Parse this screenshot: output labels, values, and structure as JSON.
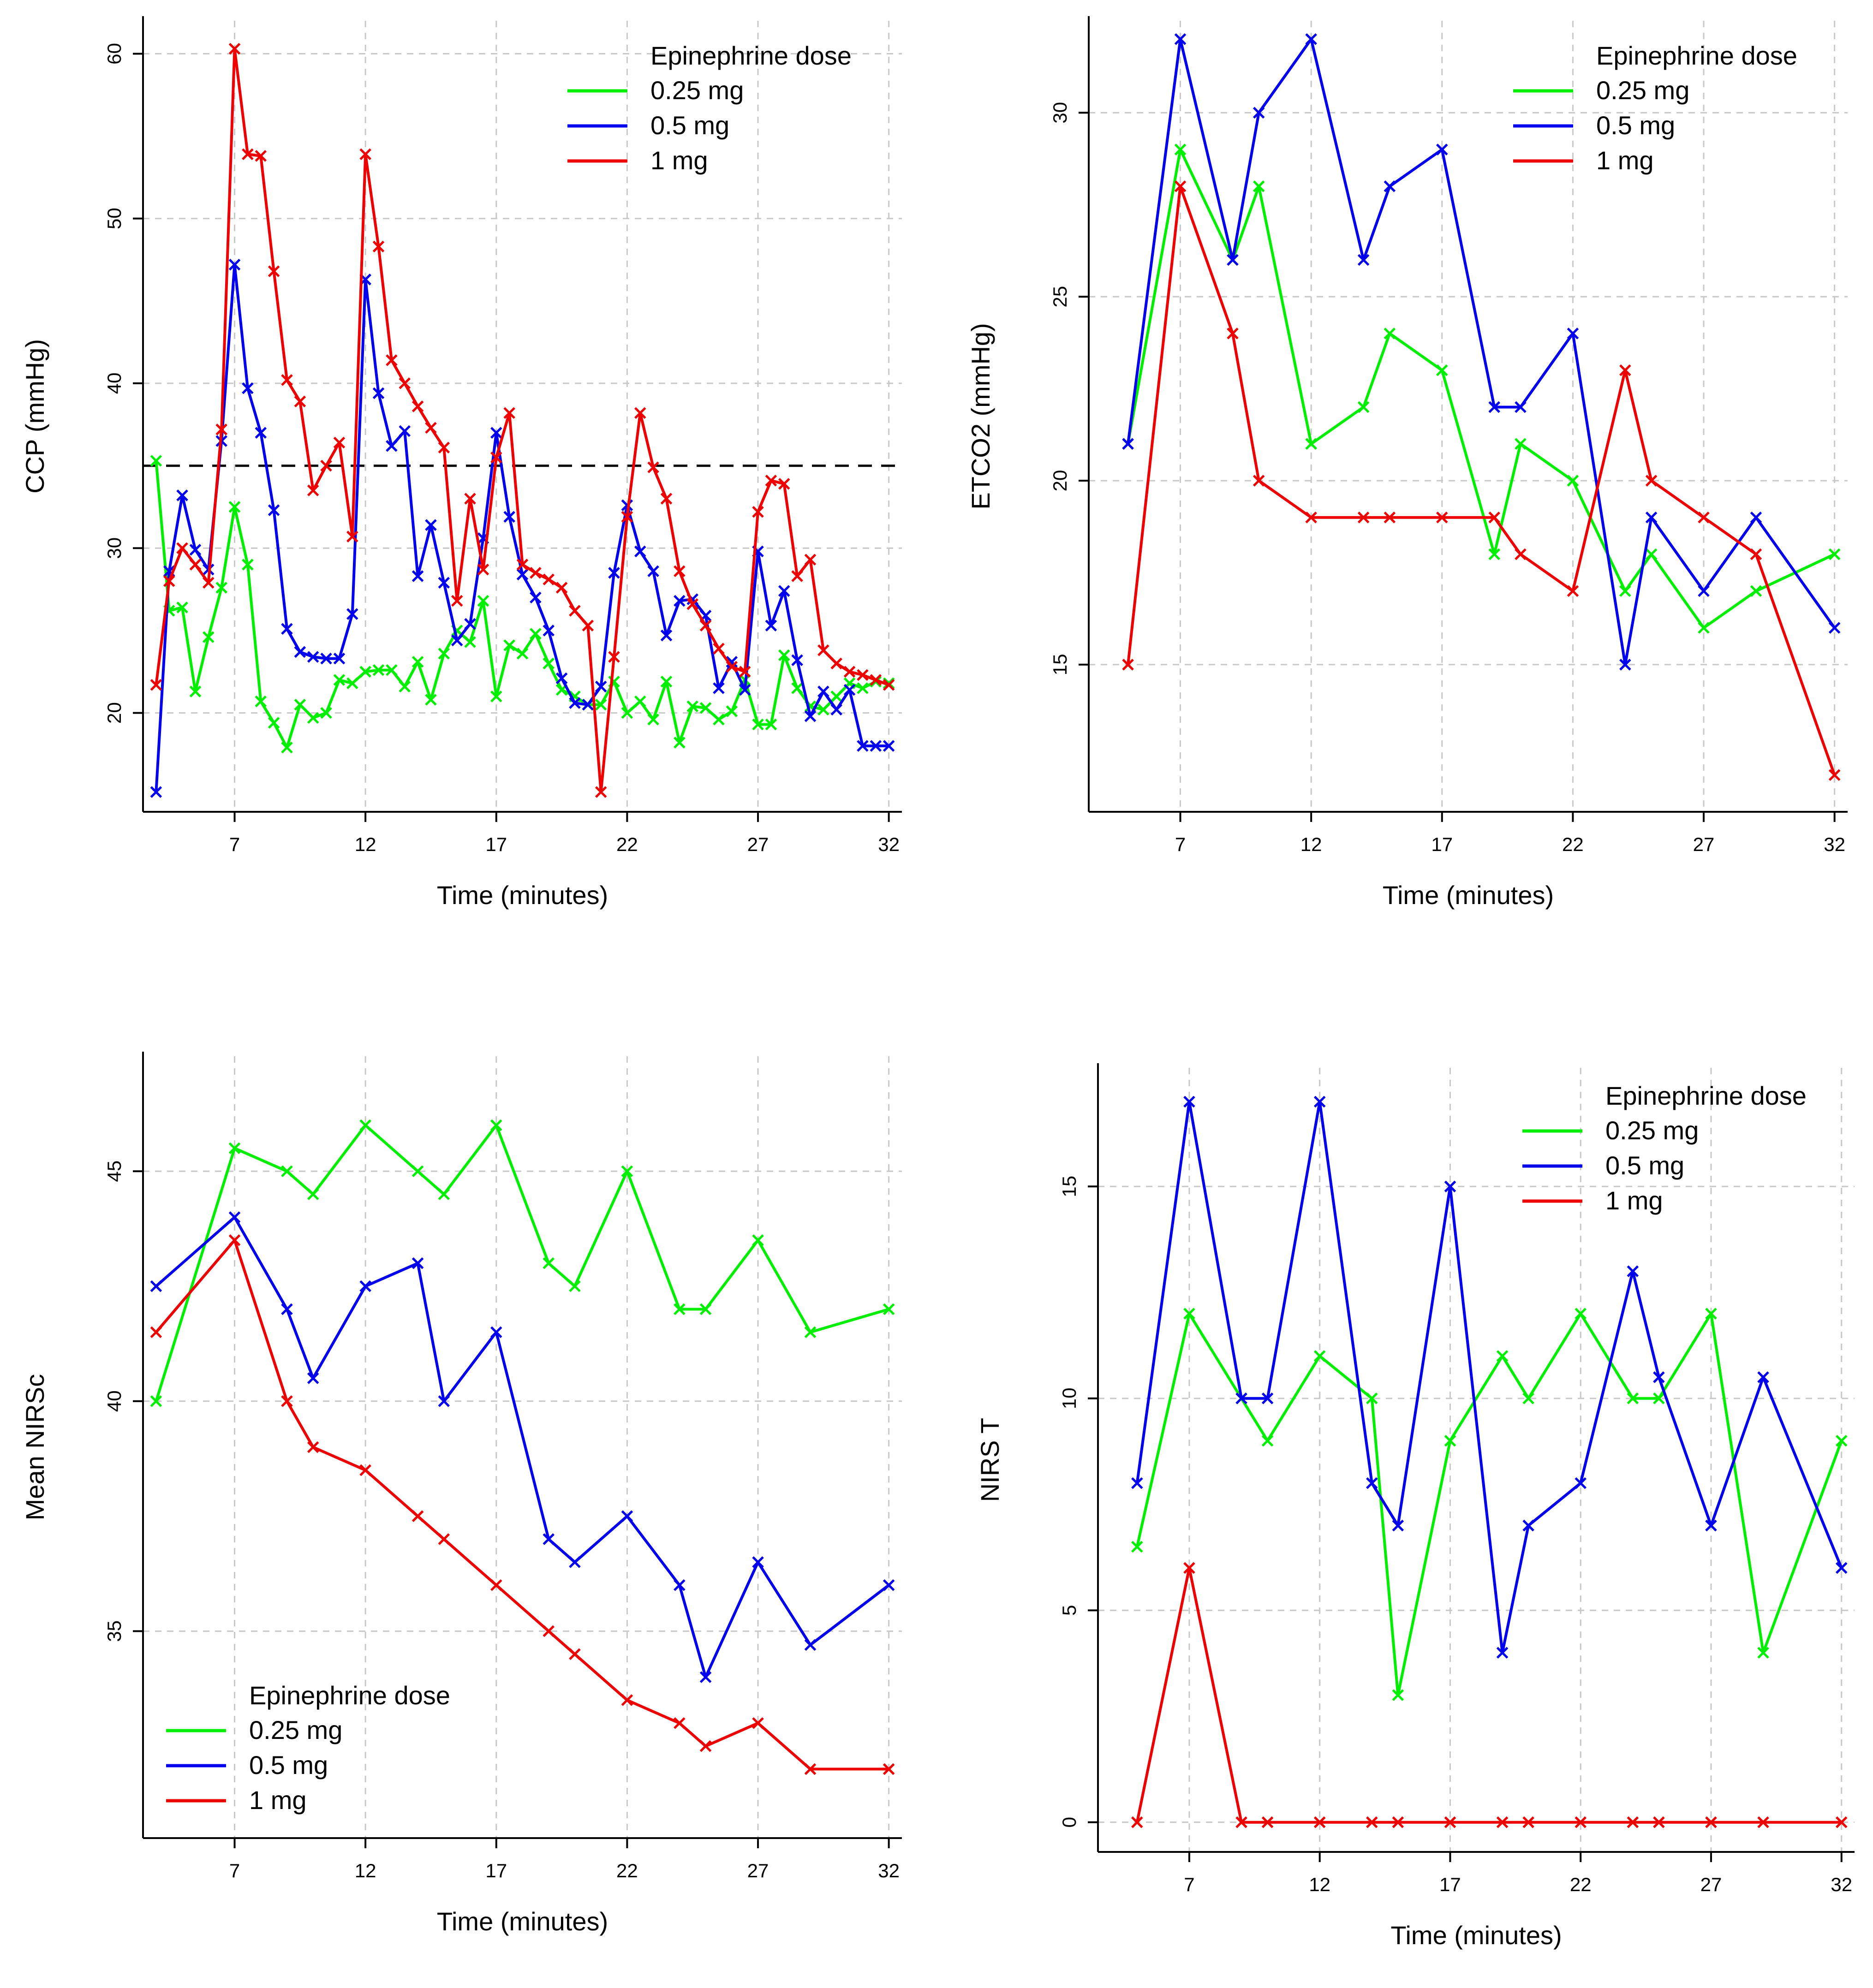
{
  "chart_data": [
    {
      "id": "ccp",
      "type": "line",
      "ylabel": "CCP (mmHg)",
      "xlabel": "Time (minutes)",
      "xlim": [
        3.5,
        32.5
      ],
      "ylim": [
        14,
        62
      ],
      "xticks": [
        7,
        12,
        17,
        22,
        27,
        32
      ],
      "yticks": [
        20,
        30,
        40,
        50,
        60
      ],
      "reference_line": 35,
      "legend": {
        "title": "Epinephrine dose",
        "position": "top-right"
      },
      "series": [
        {
          "name": "0.25 mg",
          "color": "#00ee00",
          "x": [
            4,
            4.5,
            5,
            5.5,
            6,
            6.5,
            7,
            7.5,
            8,
            8.5,
            9,
            9.5,
            10,
            10.5,
            11,
            11.5,
            12,
            12.5,
            13,
            13.5,
            14,
            14.5,
            15,
            15.5,
            16,
            16.5,
            17,
            17.5,
            18,
            18.5,
            19,
            19.5,
            20,
            20.5,
            21,
            21.5,
            22,
            22.5,
            23,
            23.5,
            24,
            24.5,
            25,
            25.5,
            26,
            26.5,
            27,
            27.5,
            28,
            28.5,
            29,
            29.5,
            30,
            30.5,
            31,
            31.5,
            32
          ],
          "y": [
            35.3,
            26.2,
            26.4,
            21.3,
            24.6,
            27.6,
            32.5,
            29.0,
            20.7,
            19.4,
            17.9,
            20.5,
            19.7,
            20.0,
            22.0,
            21.8,
            22.5,
            22.6,
            22.6,
            21.6,
            23.1,
            20.8,
            23.6,
            25.0,
            24.3,
            26.8,
            21.0,
            24.1,
            23.6,
            24.8,
            23.0,
            21.4,
            21.0,
            20.5,
            20.5,
            21.9,
            20.0,
            20.7,
            19.6,
            21.9,
            18.2,
            20.4,
            20.3,
            19.6,
            20.1,
            22.0,
            19.3,
            19.3,
            23.5,
            21.5,
            20.4,
            20.2,
            21.0,
            21.8,
            21.5,
            21.9,
            21.8
          ]
        },
        {
          "name": "0.5 mg",
          "color": "#0000ee",
          "x": [
            4,
            4.5,
            5,
            5.5,
            6,
            6.5,
            7,
            7.5,
            8,
            8.5,
            9,
            9.5,
            10,
            10.5,
            11,
            11.5,
            12,
            12.5,
            13,
            13.5,
            14,
            14.5,
            15,
            15.5,
            16,
            16.5,
            17,
            17.5,
            18,
            18.5,
            19,
            19.5,
            20,
            20.5,
            21,
            21.5,
            22,
            22.5,
            23,
            23.5,
            24,
            24.5,
            25,
            25.5,
            26,
            26.5,
            27,
            27.5,
            28,
            28.5,
            29,
            29.5,
            30,
            30.5,
            31,
            31.5,
            32
          ],
          "y": [
            15.2,
            28.6,
            33.2,
            29.9,
            28.7,
            36.5,
            47.2,
            39.7,
            37.0,
            32.3,
            25.1,
            23.7,
            23.4,
            23.3,
            23.3,
            26.0,
            46.3,
            39.4,
            36.2,
            37.1,
            28.3,
            31.4,
            27.9,
            24.4,
            25.4,
            30.6,
            37.0,
            31.9,
            28.4,
            27.0,
            25.0,
            22.1,
            20.6,
            20.5,
            21.6,
            28.5,
            32.6,
            29.8,
            28.6,
            24.7,
            26.8,
            26.9,
            25.9,
            21.5,
            23.1,
            21.4,
            29.8,
            25.3,
            27.4,
            23.2,
            19.8,
            21.3,
            20.2,
            21.4,
            18.0,
            18.0,
            18.0
          ]
        },
        {
          "name": "1 mg",
          "color": "#ee0000",
          "x": [
            4,
            4.5,
            5,
            5.5,
            6,
            6.5,
            7,
            7.5,
            8,
            8.5,
            9,
            9.5,
            10,
            10.5,
            11,
            11.5,
            12,
            12.5,
            13,
            13.5,
            14,
            14.5,
            15,
            15.5,
            16,
            16.5,
            17,
            17.5,
            18,
            18.5,
            19,
            19.5,
            20,
            20.5,
            21,
            21.5,
            22,
            22.5,
            23,
            23.5,
            24,
            24.5,
            25,
            25.5,
            26,
            26.5,
            27,
            27.5,
            28,
            28.5,
            29,
            29.5,
            30,
            30.5,
            31,
            31.5,
            32
          ],
          "y": [
            21.7,
            28.0,
            30.0,
            29.0,
            27.9,
            37.2,
            60.3,
            53.9,
            53.8,
            46.8,
            40.2,
            38.9,
            33.5,
            35.0,
            36.4,
            30.7,
            53.9,
            48.3,
            41.4,
            40.0,
            38.6,
            37.3,
            36.1,
            26.8,
            33.0,
            28.7,
            35.5,
            38.2,
            29.0,
            28.5,
            28.1,
            27.6,
            26.2,
            25.3,
            15.2,
            23.4,
            31.9,
            38.2,
            34.9,
            33.0,
            28.6,
            26.6,
            25.3,
            23.9,
            22.8,
            22.5,
            32.2,
            34.1,
            33.9,
            28.3,
            29.3,
            23.8,
            23.0,
            22.5,
            22.3,
            22.0,
            21.7
          ]
        }
      ]
    },
    {
      "id": "etco2",
      "type": "line",
      "ylabel": "ETCO2 (mmHg)",
      "xlabel": "Time (minutes)",
      "xlim": [
        3.5,
        32.5
      ],
      "ylim": [
        11,
        32.5
      ],
      "xticks": [
        7,
        12,
        17,
        22,
        27,
        32
      ],
      "yticks": [
        15,
        20,
        25,
        30
      ],
      "legend": {
        "title": "Epinephrine dose",
        "position": "top-right"
      },
      "series": [
        {
          "name": "0.25 mg",
          "color": "#00ee00",
          "x": [
            5,
            7,
            9,
            10,
            12,
            14,
            15,
            17,
            19,
            20,
            22,
            24,
            25,
            27,
            29,
            32
          ],
          "y": [
            21,
            29,
            26,
            28,
            21,
            22,
            24,
            23,
            18,
            21,
            20,
            17,
            18,
            16,
            17,
            18
          ]
        },
        {
          "name": "0.5 mg",
          "color": "#0000ee",
          "x": [
            5,
            7,
            9,
            10,
            12,
            14,
            15,
            17,
            19,
            20,
            22,
            24,
            25,
            27,
            29,
            32
          ],
          "y": [
            21,
            32,
            26,
            30,
            32,
            26,
            28,
            29,
            22,
            22,
            24,
            15,
            19,
            17,
            19,
            16
          ]
        },
        {
          "name": "1 mg",
          "color": "#ee0000",
          "x": [
            5,
            7,
            9,
            10,
            12,
            14,
            15,
            17,
            19,
            20,
            22,
            24,
            25,
            27,
            29,
            32
          ],
          "y": [
            15,
            28,
            24,
            20,
            19,
            19,
            19,
            19,
            19,
            18,
            17,
            23,
            20,
            19,
            18,
            12
          ]
        }
      ]
    },
    {
      "id": "nirsc",
      "type": "line",
      "ylabel": "Mean NIRSc",
      "xlabel": "Time (minutes)",
      "xlim": [
        3.5,
        32.5
      ],
      "ylim": [
        30.5,
        47.5
      ],
      "xticks": [
        7,
        12,
        17,
        22,
        27,
        32
      ],
      "yticks": [
        35,
        40,
        45
      ],
      "legend": {
        "title": "Epinephrine dose",
        "position": "bottom-left"
      },
      "series": [
        {
          "name": "0.25 mg",
          "color": "#00ee00",
          "x": [
            4,
            7,
            9,
            10,
            12,
            14,
            15,
            17,
            19,
            20,
            22,
            24,
            25,
            27,
            29,
            32
          ],
          "y": [
            40,
            45.5,
            45,
            44.5,
            46,
            45,
            44.5,
            46,
            43,
            42.5,
            45,
            42,
            42,
            43.5,
            41.5,
            42
          ]
        },
        {
          "name": "0.5 mg",
          "color": "#0000ee",
          "x": [
            4,
            7,
            9,
            10,
            12,
            14,
            15,
            17,
            19,
            20,
            22,
            24,
            25,
            27,
            29,
            32
          ],
          "y": [
            42.5,
            44,
            42,
            40.5,
            42.5,
            43,
            40,
            41.5,
            37,
            36.5,
            37.5,
            36,
            34,
            36.5,
            34.7,
            36
          ]
        },
        {
          "name": "1 mg",
          "color": "#ee0000",
          "x": [
            4,
            7,
            9,
            10,
            12,
            14,
            15,
            17,
            19,
            20,
            22,
            24,
            25,
            27,
            29,
            32
          ],
          "y": [
            41.5,
            43.5,
            40,
            39,
            38.5,
            37.5,
            37,
            36,
            35,
            34.5,
            33.5,
            33,
            32.5,
            33,
            32,
            32
          ]
        }
      ]
    },
    {
      "id": "nirst",
      "type": "line",
      "ylabel": "NIRS T",
      "xlabel": "Time (minutes)",
      "xlim": [
        3.5,
        32.5
      ],
      "ylim": [
        -0.7,
        17.8
      ],
      "xticks": [
        7,
        12,
        17,
        22,
        27,
        32
      ],
      "yticks": [
        0,
        5,
        10,
        15
      ],
      "legend": {
        "title": "Epinephrine dose",
        "position": "top-right"
      },
      "series": [
        {
          "name": "0.25 mg",
          "color": "#00ee00",
          "x": [
            5,
            7,
            9,
            10,
            12,
            14,
            15,
            17,
            19,
            20,
            22,
            24,
            25,
            27,
            29,
            32
          ],
          "y": [
            6.5,
            12,
            10,
            9,
            11,
            10,
            3,
            9,
            11,
            10,
            12,
            10,
            10,
            12,
            4,
            9
          ]
        },
        {
          "name": "0.5 mg",
          "color": "#0000ee",
          "x": [
            5,
            7,
            9,
            10,
            12,
            14,
            15,
            17,
            19,
            20,
            22,
            24,
            25,
            27,
            29,
            32
          ],
          "y": [
            8,
            17,
            10,
            10,
            17,
            8,
            7,
            15,
            4,
            7,
            8,
            13,
            10.5,
            7,
            10.5,
            6
          ]
        },
        {
          "name": "1 mg",
          "color": "#ee0000",
          "x": [
            5,
            7,
            9,
            10,
            12,
            14,
            15,
            17,
            19,
            20,
            22,
            24,
            25,
            27,
            29,
            32
          ],
          "y": [
            0,
            6,
            0,
            0,
            0,
            0,
            0,
            0,
            0,
            0,
            0,
            0,
            0,
            0,
            0,
            0
          ]
        }
      ]
    }
  ]
}
